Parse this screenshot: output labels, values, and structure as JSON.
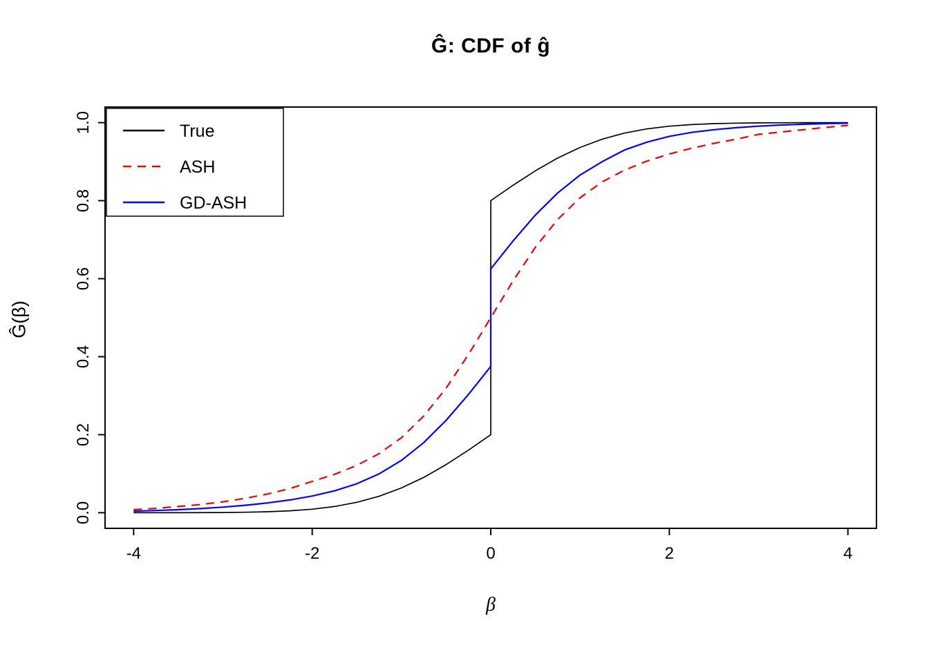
{
  "chart_data": {
    "type": "line",
    "title": "Ĝ: CDF of ĝ",
    "xlabel": "β",
    "ylabel": "Ĝ(β)",
    "xlim": [
      -4,
      4
    ],
    "ylim": [
      0,
      1
    ],
    "x_ticks": [
      -4,
      -2,
      0,
      2,
      4
    ],
    "x_tick_labels": [
      "-4",
      "-2",
      "0",
      "2",
      "4"
    ],
    "y_ticks": [
      0,
      0.2,
      0.4,
      0.6,
      0.8,
      1.0
    ],
    "y_tick_labels": [
      "0.0",
      "0.2",
      "0.4",
      "0.6",
      "0.8",
      "1.0"
    ],
    "grid": false,
    "legend_position": "topleft",
    "series": [
      {
        "name": "True",
        "color": "#000000",
        "style": "solid",
        "width": 1.7,
        "note": "mixture CDF with point mass at 0, jumps from 0.2 to 0.8",
        "points": [
          [
            -4,
            0
          ],
          [
            -3.5,
            0.0001
          ],
          [
            -3,
            0.0005
          ],
          [
            -2.75,
            0.0012
          ],
          [
            -2.5,
            0.0025
          ],
          [
            -2.25,
            0.0049
          ],
          [
            -2,
            0.0091
          ],
          [
            -1.75,
            0.016
          ],
          [
            -1.5,
            0.0267
          ],
          [
            -1.25,
            0.0422
          ],
          [
            -1,
            0.0635
          ],
          [
            -0.75,
            0.0907
          ],
          [
            -0.5,
            0.1234
          ],
          [
            -0.25,
            0.1605
          ],
          [
            0,
            0.2
          ],
          [
            0,
            0.8
          ],
          [
            0.25,
            0.8395
          ],
          [
            0.5,
            0.8766
          ],
          [
            0.75,
            0.9093
          ],
          [
            1,
            0.9365
          ],
          [
            1.25,
            0.9578
          ],
          [
            1.5,
            0.9733
          ],
          [
            1.75,
            0.984
          ],
          [
            2,
            0.9909
          ],
          [
            2.25,
            0.9951
          ],
          [
            2.5,
            0.9975
          ],
          [
            2.75,
            0.9988
          ],
          [
            3,
            0.9995
          ],
          [
            3.5,
            0.9999
          ],
          [
            4,
            1
          ]
        ]
      },
      {
        "name": "ASH",
        "color": "#EE0000",
        "style": "dashed",
        "width": 2.2,
        "note": "smooth sigmoid CDF through 0.5 at beta=0",
        "points": [
          [
            -4,
            0.008
          ],
          [
            -3.75,
            0.0114
          ],
          [
            -3.5,
            0.016
          ],
          [
            -3.25,
            0.021
          ],
          [
            -3,
            0.028
          ],
          [
            -2.75,
            0.037
          ],
          [
            -2.5,
            0.048
          ],
          [
            -2.25,
            0.062
          ],
          [
            -2,
            0.0804
          ],
          [
            -1.75,
            0.0985
          ],
          [
            -1.5,
            0.1214
          ],
          [
            -1.25,
            0.1515
          ],
          [
            -1,
            0.1925
          ],
          [
            -0.75,
            0.248
          ],
          [
            -0.5,
            0.3194
          ],
          [
            -0.25,
            0.4054
          ],
          [
            0,
            0.5
          ],
          [
            0.25,
            0.5946
          ],
          [
            0.5,
            0.6806
          ],
          [
            0.75,
            0.752
          ],
          [
            1,
            0.8075
          ],
          [
            1.25,
            0.8485
          ],
          [
            1.5,
            0.8786
          ],
          [
            1.75,
            0.9015
          ],
          [
            2,
            0.9196
          ],
          [
            2.25,
            0.9345
          ],
          [
            2.5,
            0.9471
          ],
          [
            2.75,
            0.9577
          ],
          [
            3,
            0.97
          ],
          [
            3.25,
            0.976
          ],
          [
            3.5,
            0.982
          ],
          [
            3.75,
            0.988
          ],
          [
            4,
            0.993
          ]
        ]
      },
      {
        "name": "GD-ASH",
        "color": "#0000FF",
        "style": "solid",
        "width": 2.2,
        "note": "CDF with smaller jump at 0 from 0.375 to 0.625",
        "points": [
          [
            -4,
            0.004
          ],
          [
            -3.75,
            0.0056
          ],
          [
            -3.5,
            0.0078
          ],
          [
            -3.25,
            0.0107
          ],
          [
            -3,
            0.0144
          ],
          [
            -2.75,
            0.0191
          ],
          [
            -2.5,
            0.0251
          ],
          [
            -2.25,
            0.0328
          ],
          [
            -2,
            0.0428
          ],
          [
            -1.75,
            0.0561
          ],
          [
            -1.5,
            0.0744
          ],
          [
            -1.25,
            0.0997
          ],
          [
            -1,
            0.1343
          ],
          [
            -0.75,
            0.1799
          ],
          [
            -0.5,
            0.2369
          ],
          [
            -0.25,
            0.3032
          ],
          [
            0,
            0.375
          ],
          [
            0,
            0.625
          ],
          [
            0.25,
            0.6968
          ],
          [
            0.5,
            0.7632
          ],
          [
            0.75,
            0.82
          ],
          [
            1,
            0.8657
          ],
          [
            1.25,
            0.9003
          ],
          [
            1.5,
            0.93
          ],
          [
            1.75,
            0.95
          ],
          [
            2,
            0.965
          ],
          [
            2.25,
            0.975
          ],
          [
            2.5,
            0.982
          ],
          [
            2.75,
            0.987
          ],
          [
            3,
            0.991
          ],
          [
            3.25,
            0.994
          ],
          [
            3.5,
            0.996
          ],
          [
            3.75,
            0.9975
          ],
          [
            4,
            0.9985
          ]
        ]
      }
    ],
    "legend": {
      "entries": [
        {
          "label": "True",
          "color": "#000000",
          "style": "solid"
        },
        {
          "label": "ASH",
          "color": "#EE0000",
          "style": "dashed"
        },
        {
          "label": "GD-ASH",
          "color": "#0000FF",
          "style": "solid"
        }
      ]
    }
  }
}
